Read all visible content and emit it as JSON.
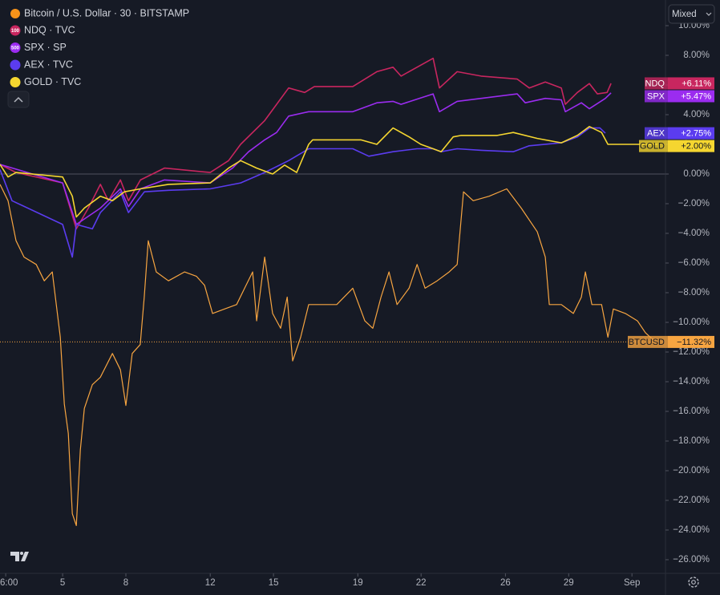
{
  "chart_data": {
    "type": "line",
    "title": "Bitcoin / U.S. Dollar · 30 · BITSTAMP",
    "scale_mode": "Mixed",
    "xlim": [
      2.03,
      33.59
    ],
    "xticks": [
      {
        "value": 2.3,
        "label": "6:00"
      },
      5,
      8,
      12,
      15,
      19,
      22,
      26,
      29,
      {
        "value": 32,
        "label": "Sep"
      }
    ],
    "ylim": [
      -26.92,
      11.73
    ],
    "yticks": [
      {
        "value": 10,
        "label": "10.00%"
      },
      {
        "value": 8,
        "label": "8.00%"
      },
      {
        "value": 6,
        "label": "6.00%"
      },
      {
        "value": 4,
        "label": "4.00%"
      },
      {
        "value": 2,
        "label": "2.00%"
      },
      {
        "value": 0,
        "label": "0.00%"
      },
      {
        "value": -2,
        "label": "−2.00%"
      },
      {
        "value": -4,
        "label": "−4.00%"
      },
      {
        "value": -6,
        "label": "−6.00%"
      },
      {
        "value": -8,
        "label": "−8.00%"
      },
      {
        "value": -10,
        "label": "−10.00%"
      },
      {
        "value": -12,
        "label": "−12.00%"
      },
      {
        "value": -14,
        "label": "−14.00%"
      },
      {
        "value": -16,
        "label": "−16.00%"
      },
      {
        "value": -18,
        "label": "−18.00%"
      },
      {
        "value": -20,
        "label": "−20.00%"
      },
      {
        "value": -22,
        "label": "−22.00%"
      },
      {
        "value": -24,
        "label": "−24.00%"
      },
      {
        "value": -26,
        "label": "−26.00%"
      }
    ],
    "series": [
      {
        "name": "BTCUSD",
        "color": "#f7a541",
        "last_label": "−11.32%",
        "x": [
          2.03,
          2.41,
          2.79,
          3.17,
          3.75,
          4.13,
          4.51,
          4.7,
          4.89,
          5.08,
          5.27,
          5.46,
          5.65,
          5.84,
          6.03,
          6.41,
          6.79,
          7.36,
          7.74,
          8.0,
          8.3,
          8.68,
          8.87,
          9.06,
          9.44,
          10.02,
          10.78,
          11.35,
          11.73,
          12.11,
          12.68,
          13.25,
          13.63,
          14.01,
          14.2,
          14.58,
          14.96,
          15.34,
          15.65,
          15.91,
          16.29,
          16.67,
          17.24,
          18.0,
          18.76,
          19.33,
          19.71,
          20.1,
          20.48,
          20.86,
          21.43,
          21.81,
          22.19,
          22.76,
          23.33,
          23.71,
          24.01,
          24.47,
          25.23,
          26.06,
          26.75,
          27.51,
          27.89,
          28.08,
          28.65,
          29.22,
          29.6,
          29.79,
          30.1,
          30.56,
          30.86,
          31.12,
          31.69,
          32.26,
          32.64,
          33.02,
          33.21
        ],
        "values": [
          -0.7,
          -1.8,
          -4.5,
          -5.6,
          -6.1,
          -7.2,
          -6.6,
          -8.8,
          -11,
          -15.5,
          -17.5,
          -22.9,
          -23.7,
          -18.6,
          -15.8,
          -14.2,
          -13.7,
          -12.1,
          -13.2,
          -15.6,
          -12.1,
          -11.5,
          -8.3,
          -4.5,
          -6.6,
          -7.2,
          -6.6,
          -6.9,
          -7.5,
          -9.4,
          -9.1,
          -8.8,
          -7.7,
          -6.6,
          -9.9,
          -5.6,
          -9.4,
          -10.4,
          -8.3,
          -12.6,
          -11,
          -8.8,
          -8.8,
          -8.8,
          -7.7,
          -9.9,
          -10.4,
          -8.3,
          -6.6,
          -8.8,
          -7.7,
          -6.1,
          -7.7,
          -7.2,
          -6.6,
          -6.1,
          -1.2,
          -1.8,
          -1.5,
          -1.0,
          -2.3,
          -3.9,
          -5.6,
          -8.8,
          -8.8,
          -9.4,
          -8.3,
          -6.6,
          -8.8,
          -8.8,
          -11,
          -9.1,
          -9.4,
          -9.9,
          -10.7,
          -11.2,
          -11.32
        ]
      },
      {
        "name": "NDQ",
        "legend": "NDQ · TVC",
        "badge": "100",
        "color": "#c8265f",
        "last_label": "+6.11%",
        "x": [
          2.03,
          2.79,
          5.0,
          5.65,
          6.22,
          6.79,
          7.17,
          7.74,
          8.12,
          8.69,
          9.83,
          12.0,
          12.87,
          13.44,
          14.58,
          15.15,
          15.72,
          16.48,
          16.94,
          18.76,
          19.9,
          20.67,
          21.05,
          22.57,
          22.87,
          23.71,
          24.85,
          26.56,
          27.13,
          27.89,
          28.65,
          28.84,
          29.41,
          29.98,
          30.36,
          30.82,
          31.01
        ],
        "values": [
          0.65,
          0.1,
          -0.6,
          -3.7,
          -2.3,
          -0.7,
          -1.8,
          -0.4,
          -1.8,
          -0.4,
          0.4,
          0.1,
          0.9,
          2.0,
          3.6,
          4.7,
          5.8,
          5.5,
          5.9,
          5.9,
          6.9,
          7.2,
          6.6,
          7.8,
          5.8,
          6.9,
          6.6,
          6.4,
          5.8,
          6.2,
          5.8,
          4.7,
          5.5,
          6.1,
          5.4,
          5.5,
          6.11
        ]
      },
      {
        "name": "SPX",
        "legend": "SPX · SP",
        "badge": "500",
        "color": "#9b2cf0",
        "last_label": "+5.47%",
        "x": [
          2.03,
          5.0,
          5.65,
          6.79,
          7.74,
          8.12,
          8.69,
          9.83,
          12.0,
          13.06,
          13.82,
          14.58,
          15.15,
          15.72,
          16.67,
          18.76,
          19.9,
          20.67,
          21.05,
          22.57,
          22.87,
          23.71,
          24.85,
          26.56,
          26.94,
          27.89,
          28.65,
          28.84,
          29.6,
          29.98,
          30.74,
          31.01
        ],
        "values": [
          0.65,
          -0.6,
          -3.4,
          -2.3,
          -1.0,
          -2.2,
          -1.0,
          -0.4,
          -0.6,
          0.4,
          1.5,
          2.3,
          2.8,
          3.9,
          4.2,
          4.2,
          4.8,
          4.9,
          4.7,
          5.4,
          4.2,
          4.9,
          5.1,
          5.4,
          4.8,
          5.1,
          5.0,
          4.2,
          4.8,
          4.4,
          5.1,
          5.47
        ]
      },
      {
        "name": "AEX",
        "legend": "AEX · TVC",
        "color": "#5b3cf0",
        "last_label": "+2.75%",
        "x": [
          2.03,
          2.6,
          5.0,
          5.46,
          5.65,
          6.41,
          6.79,
          7.74,
          8.12,
          8.88,
          10.02,
          12.0,
          13.44,
          14.58,
          15.72,
          16.67,
          18.76,
          19.52,
          20.67,
          21.81,
          22.57,
          22.95,
          23.71,
          24.85,
          26.37,
          27.13,
          28.65,
          29.41,
          29.98,
          30.48,
          30.74
        ],
        "values": [
          0.3,
          -1.8,
          -3.4,
          -5.6,
          -3.4,
          -3.7,
          -2.6,
          -1.2,
          -2.6,
          -1.2,
          -1.1,
          -1.0,
          -0.6,
          0.1,
          0.9,
          1.7,
          1.7,
          1.2,
          1.5,
          1.7,
          1.7,
          1.5,
          1.7,
          1.6,
          1.5,
          1.9,
          2.1,
          2.5,
          3.1,
          3.1,
          2.75
        ]
      },
      {
        "name": "GOLD",
        "legend": "GOLD · TVC",
        "color": "#f5d630",
        "last_label": "+2.00%",
        "x": [
          2.03,
          2.41,
          2.79,
          5.0,
          5.46,
          5.65,
          6.03,
          6.79,
          7.36,
          7.93,
          8.69,
          10.02,
          12.0,
          12.87,
          13.44,
          14.2,
          14.96,
          15.53,
          16.1,
          16.67,
          16.86,
          19.14,
          19.9,
          20.67,
          21.43,
          21.99,
          22.57,
          22.95,
          23.52,
          23.9,
          25.61,
          26.37,
          27.51,
          28.65,
          29.41,
          29.98,
          30.56,
          30.86,
          32.07,
          33.21
        ],
        "values": [
          0.65,
          -0.2,
          0.1,
          -0.2,
          -1.5,
          -2.9,
          -2.3,
          -1.5,
          -1.8,
          -1.2,
          -1.0,
          -0.7,
          -0.6,
          0.4,
          0.9,
          0.4,
          0,
          0.6,
          0.1,
          2.0,
          2.3,
          2.3,
          2.0,
          3.1,
          2.5,
          2.0,
          1.7,
          1.5,
          2.5,
          2.6,
          2.6,
          2.8,
          2.4,
          2.1,
          2.6,
          3.2,
          2.8,
          2.0,
          2.0,
          2.0
        ]
      }
    ]
  }
}
